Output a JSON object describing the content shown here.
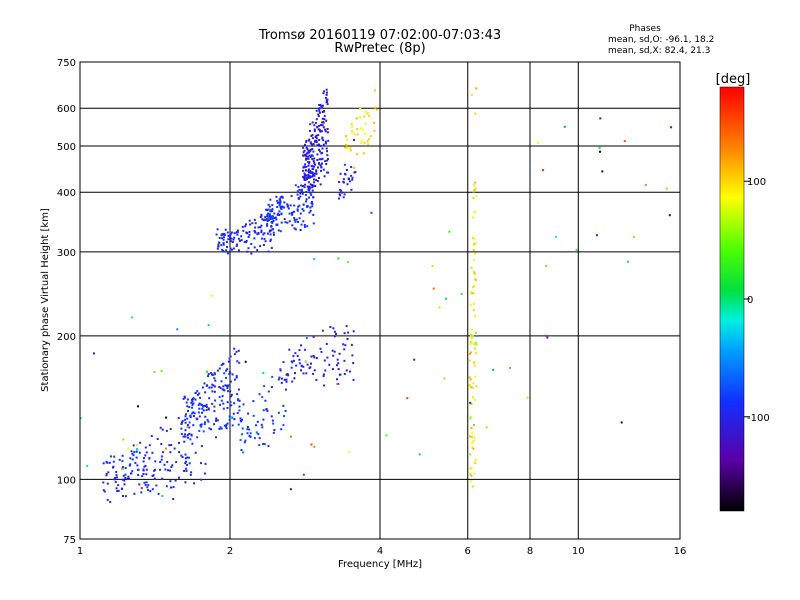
{
  "chart_data": {
    "type": "scatter",
    "title": "Tromsø 20160119 07:02:00-07:03:43",
    "subtitle": "RwPretec (8p)",
    "xlabel": "Frequency [MHz]",
    "ylabel": "Stationary phase Virtual Height [km]",
    "x_scale": "log",
    "y_scale": "log",
    "xlim": [
      1,
      16
    ],
    "ylim": [
      75,
      750
    ],
    "x_ticks": [
      1,
      2,
      4,
      6,
      8,
      10,
      16
    ],
    "x_tick_labels": [
      "1",
      "2",
      "4",
      "6",
      "8",
      "10",
      "16"
    ],
    "y_ticks": [
      75,
      100,
      200,
      300,
      400,
      500,
      600,
      750
    ],
    "y_tick_labels": [
      "75",
      "100",
      "200",
      "300",
      "400",
      "500",
      "600",
      "750"
    ],
    "grid": true,
    "phases": {
      "heading": "Phases",
      "line_o": "mean, sd,O: -96.1, 18.2",
      "line_x": "mean, sd,X:  82.4, 21.3"
    },
    "colorbar": {
      "label": "[deg]",
      "range": [
        -180,
        180
      ],
      "ticks": [
        100,
        0,
        -100
      ],
      "tick_labels": [
        "100",
        "0",
        "-100"
      ]
    },
    "series_clusters": [
      {
        "f_range": [
          1.88,
          2.45
        ],
        "h_range": [
          290,
          345
        ],
        "phase": -95,
        "spread": 8,
        "count": 130
      },
      {
        "f_range": [
          2.35,
          2.95
        ],
        "h_range": [
          320,
          420
        ],
        "phase": -90,
        "spread": 12,
        "count": 160
      },
      {
        "f_range": [
          2.8,
          3.15
        ],
        "h_range": [
          380,
          650
        ],
        "phase": -105,
        "spread": 15,
        "count": 220
      },
      {
        "f_range": [
          3.3,
          3.6
        ],
        "h_range": [
          370,
          520
        ],
        "phase": -95,
        "spread": 20,
        "count": 30
      },
      {
        "f_range": [
          3.4,
          3.95
        ],
        "h_range": [
          460,
          620
        ],
        "phase": 95,
        "spread": 15,
        "count": 40
      },
      {
        "f_range": [
          1.1,
          1.8
        ],
        "h_range": [
          85,
          140
        ],
        "phase": -95,
        "spread": 12,
        "count": 180
      },
      {
        "f_range": [
          1.6,
          2.1
        ],
        "h_range": [
          115,
          185
        ],
        "phase": -90,
        "spread": 15,
        "count": 180
      },
      {
        "f_range": [
          2.1,
          2.6
        ],
        "h_range": [
          110,
          170
        ],
        "phase": -85,
        "spread": 15,
        "count": 60
      },
      {
        "f_range": [
          2.5,
          3.55
        ],
        "h_range": [
          150,
          210
        ],
        "phase": -100,
        "spread": 15,
        "count": 90
      },
      {
        "f_range": [
          6.05,
          6.25
        ],
        "h_range": [
          75,
          700
        ],
        "phase": 90,
        "spread": 30,
        "count": 90
      },
      {
        "f_range": [
          1.0,
          16.0
        ],
        "h_range": [
          75,
          700
        ],
        "phase": 0,
        "spread": 180,
        "count": 70
      }
    ],
    "points": [
      [
        1.25,
        116,
        85
      ],
      [
        1.3,
        118,
        70
      ],
      [
        1.22,
        105,
        60
      ],
      [
        3.55,
        450,
        110
      ],
      [
        3.65,
        600,
        100
      ],
      [
        3.7,
        540,
        85
      ],
      [
        8.5,
        445,
        170
      ],
      [
        8.6,
        200,
        170
      ],
      [
        12.4,
        512,
        150
      ],
      [
        10.9,
        325,
        -95
      ],
      [
        6.12,
        640,
        95
      ],
      [
        5.1,
        280,
        100
      ]
    ]
  }
}
